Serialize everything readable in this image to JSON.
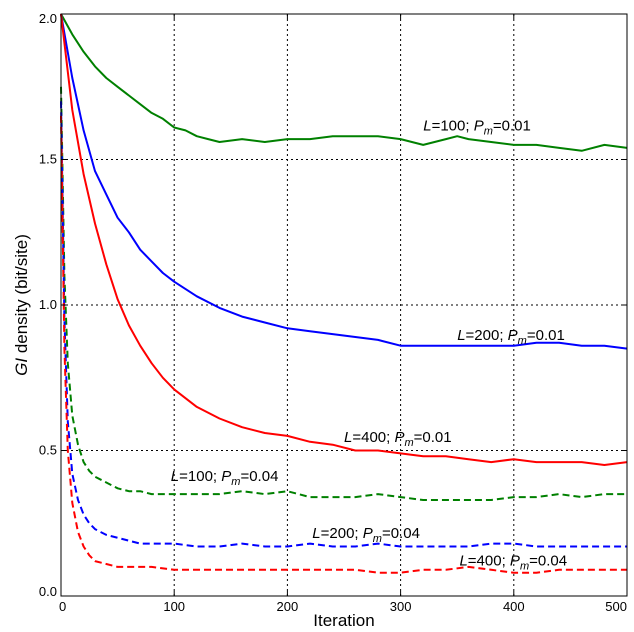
{
  "chart_data": {
    "type": "line",
    "xlabel": "Iteration",
    "ylabel_parts": [
      "GI",
      " density (bit/site)"
    ],
    "xlim": [
      0,
      500
    ],
    "ylim": [
      0,
      2
    ],
    "x_ticks": [
      0,
      100,
      200,
      300,
      400,
      500
    ],
    "y_ticks": [
      0.0,
      0.5,
      1.0,
      1.5,
      2.0
    ],
    "x_tick_labels": [
      "0",
      "100",
      "200",
      "300",
      "400",
      "500"
    ],
    "y_tick_labels": [
      "0.0",
      "0.5",
      "1.0",
      "1.5",
      "2.0"
    ],
    "grid": true,
    "series": [
      {
        "id": "L100_p001",
        "label": {
          "L": "100",
          "Pm": "0.01"
        },
        "color": "#008000",
        "style": "solid",
        "points": [
          [
            0,
            2.0
          ],
          [
            10,
            1.93
          ],
          [
            20,
            1.87
          ],
          [
            30,
            1.82
          ],
          [
            40,
            1.78
          ],
          [
            50,
            1.75
          ],
          [
            60,
            1.72
          ],
          [
            70,
            1.69
          ],
          [
            80,
            1.66
          ],
          [
            90,
            1.64
          ],
          [
            100,
            1.61
          ],
          [
            110,
            1.6
          ],
          [
            120,
            1.58
          ],
          [
            130,
            1.57
          ],
          [
            140,
            1.56
          ],
          [
            160,
            1.57
          ],
          [
            180,
            1.56
          ],
          [
            200,
            1.57
          ],
          [
            220,
            1.57
          ],
          [
            240,
            1.58
          ],
          [
            260,
            1.58
          ],
          [
            280,
            1.58
          ],
          [
            300,
            1.57
          ],
          [
            320,
            1.55
          ],
          [
            340,
            1.57
          ],
          [
            350,
            1.58
          ],
          [
            360,
            1.57
          ],
          [
            380,
            1.56
          ],
          [
            400,
            1.55
          ],
          [
            420,
            1.55
          ],
          [
            440,
            1.54
          ],
          [
            460,
            1.53
          ],
          [
            480,
            1.55
          ],
          [
            500,
            1.54
          ]
        ]
      },
      {
        "id": "L200_p001",
        "label": {
          "L": "200",
          "Pm": "0.01"
        },
        "color": "#0000ff",
        "style": "solid",
        "points": [
          [
            0,
            2.0
          ],
          [
            10,
            1.78
          ],
          [
            20,
            1.6
          ],
          [
            30,
            1.46
          ],
          [
            40,
            1.38
          ],
          [
            50,
            1.3
          ],
          [
            60,
            1.25
          ],
          [
            70,
            1.19
          ],
          [
            80,
            1.15
          ],
          [
            90,
            1.11
          ],
          [
            100,
            1.08
          ],
          [
            120,
            1.03
          ],
          [
            140,
            0.99
          ],
          [
            160,
            0.96
          ],
          [
            180,
            0.94
          ],
          [
            200,
            0.92
          ],
          [
            220,
            0.91
          ],
          [
            240,
            0.9
          ],
          [
            260,
            0.89
          ],
          [
            280,
            0.88
          ],
          [
            300,
            0.86
          ],
          [
            320,
            0.86
          ],
          [
            340,
            0.86
          ],
          [
            360,
            0.86
          ],
          [
            380,
            0.86
          ],
          [
            400,
            0.86
          ],
          [
            420,
            0.87
          ],
          [
            440,
            0.87
          ],
          [
            460,
            0.86
          ],
          [
            480,
            0.86
          ],
          [
            500,
            0.85
          ]
        ]
      },
      {
        "id": "L400_p001",
        "label": {
          "L": "400",
          "Pm": "0.01"
        },
        "color": "#ff0000",
        "style": "solid",
        "points": [
          [
            0,
            2.0
          ],
          [
            10,
            1.67
          ],
          [
            20,
            1.45
          ],
          [
            30,
            1.28
          ],
          [
            40,
            1.14
          ],
          [
            50,
            1.02
          ],
          [
            60,
            0.93
          ],
          [
            70,
            0.86
          ],
          [
            80,
            0.8
          ],
          [
            90,
            0.75
          ],
          [
            100,
            0.71
          ],
          [
            120,
            0.65
          ],
          [
            140,
            0.61
          ],
          [
            160,
            0.58
          ],
          [
            180,
            0.56
          ],
          [
            200,
            0.55
          ],
          [
            220,
            0.53
          ],
          [
            240,
            0.52
          ],
          [
            260,
            0.5
          ],
          [
            280,
            0.5
          ],
          [
            300,
            0.49
          ],
          [
            320,
            0.48
          ],
          [
            340,
            0.48
          ],
          [
            360,
            0.47
          ],
          [
            380,
            0.46
          ],
          [
            400,
            0.47
          ],
          [
            420,
            0.46
          ],
          [
            440,
            0.46
          ],
          [
            460,
            0.46
          ],
          [
            480,
            0.45
          ],
          [
            500,
            0.46
          ]
        ]
      },
      {
        "id": "L100_p004",
        "label": {
          "L": "100",
          "Pm": "0.04"
        },
        "color": "#008000",
        "style": "dashed",
        "points": [
          [
            0,
            1.75
          ],
          [
            3,
            1.1
          ],
          [
            6,
            0.8
          ],
          [
            10,
            0.62
          ],
          [
            15,
            0.52
          ],
          [
            20,
            0.46
          ],
          [
            25,
            0.43
          ],
          [
            30,
            0.41
          ],
          [
            40,
            0.39
          ],
          [
            50,
            0.37
          ],
          [
            60,
            0.36
          ],
          [
            70,
            0.36
          ],
          [
            80,
            0.35
          ],
          [
            100,
            0.35
          ],
          [
            120,
            0.35
          ],
          [
            140,
            0.35
          ],
          [
            160,
            0.36
          ],
          [
            180,
            0.35
          ],
          [
            200,
            0.36
          ],
          [
            220,
            0.34
          ],
          [
            240,
            0.34
          ],
          [
            260,
            0.34
          ],
          [
            280,
            0.35
          ],
          [
            300,
            0.34
          ],
          [
            320,
            0.33
          ],
          [
            340,
            0.33
          ],
          [
            360,
            0.33
          ],
          [
            380,
            0.33
          ],
          [
            400,
            0.34
          ],
          [
            420,
            0.34
          ],
          [
            440,
            0.35
          ],
          [
            460,
            0.34
          ],
          [
            480,
            0.35
          ],
          [
            500,
            0.35
          ]
        ]
      },
      {
        "id": "L200_p004",
        "label": {
          "L": "200",
          "Pm": "0.04"
        },
        "color": "#0000ff",
        "style": "dashed",
        "points": [
          [
            0,
            1.7
          ],
          [
            3,
            0.95
          ],
          [
            6,
            0.6
          ],
          [
            10,
            0.42
          ],
          [
            15,
            0.33
          ],
          [
            20,
            0.28
          ],
          [
            25,
            0.25
          ],
          [
            30,
            0.23
          ],
          [
            40,
            0.21
          ],
          [
            50,
            0.2
          ],
          [
            60,
            0.19
          ],
          [
            70,
            0.18
          ],
          [
            80,
            0.18
          ],
          [
            100,
            0.18
          ],
          [
            120,
            0.17
          ],
          [
            140,
            0.17
          ],
          [
            160,
            0.18
          ],
          [
            180,
            0.17
          ],
          [
            200,
            0.17
          ],
          [
            220,
            0.18
          ],
          [
            240,
            0.17
          ],
          [
            260,
            0.17
          ],
          [
            280,
            0.18
          ],
          [
            300,
            0.17
          ],
          [
            320,
            0.17
          ],
          [
            340,
            0.17
          ],
          [
            360,
            0.17
          ],
          [
            380,
            0.18
          ],
          [
            400,
            0.18
          ],
          [
            420,
            0.17
          ],
          [
            440,
            0.17
          ],
          [
            460,
            0.17
          ],
          [
            480,
            0.17
          ],
          [
            500,
            0.17
          ]
        ]
      },
      {
        "id": "L400_p004",
        "label": {
          "L": "400",
          "Pm": "0.04"
        },
        "color": "#ff0000",
        "style": "dashed",
        "points": [
          [
            0,
            1.65
          ],
          [
            3,
            0.85
          ],
          [
            6,
            0.5
          ],
          [
            10,
            0.32
          ],
          [
            15,
            0.22
          ],
          [
            20,
            0.17
          ],
          [
            25,
            0.14
          ],
          [
            30,
            0.12
          ],
          [
            40,
            0.11
          ],
          [
            50,
            0.1
          ],
          [
            60,
            0.1
          ],
          [
            70,
            0.1
          ],
          [
            80,
            0.1
          ],
          [
            100,
            0.09
          ],
          [
            120,
            0.09
          ],
          [
            140,
            0.09
          ],
          [
            160,
            0.09
          ],
          [
            180,
            0.09
          ],
          [
            200,
            0.09
          ],
          [
            220,
            0.09
          ],
          [
            240,
            0.09
          ],
          [
            260,
            0.09
          ],
          [
            280,
            0.08
          ],
          [
            300,
            0.08
          ],
          [
            320,
            0.09
          ],
          [
            340,
            0.09
          ],
          [
            360,
            0.1
          ],
          [
            380,
            0.09
          ],
          [
            400,
            0.08
          ],
          [
            420,
            0.08
          ],
          [
            440,
            0.09
          ],
          [
            460,
            0.09
          ],
          [
            480,
            0.09
          ],
          [
            500,
            0.09
          ]
        ]
      }
    ],
    "annotations": [
      {
        "series_id": "L100_p001",
        "L": "100",
        "Pm": "0.01",
        "x": 320,
        "y": 1.6
      },
      {
        "series_id": "L200_p001",
        "L": "200",
        "Pm": "0.01",
        "x": 350,
        "y": 0.88
      },
      {
        "series_id": "L400_p001",
        "L": "400",
        "Pm": "0.01",
        "x": 250,
        "y": 0.53
      },
      {
        "series_id": "L100_p004",
        "L": "100",
        "Pm": "0.04",
        "x": 97,
        "y": 0.395
      },
      {
        "series_id": "L200_p004",
        "L": "200",
        "Pm": "0.04",
        "x": 222,
        "y": 0.2
      },
      {
        "series_id": "L400_p004",
        "L": "400",
        "Pm": "0.04",
        "x": 352,
        "y": 0.104
      }
    ],
    "label_text": {
      "L_prefix": "L",
      "L_eq": "=",
      "sep": "; ",
      "P_prefix": "P",
      "P_sub": "m",
      "P_eq": "="
    }
  }
}
